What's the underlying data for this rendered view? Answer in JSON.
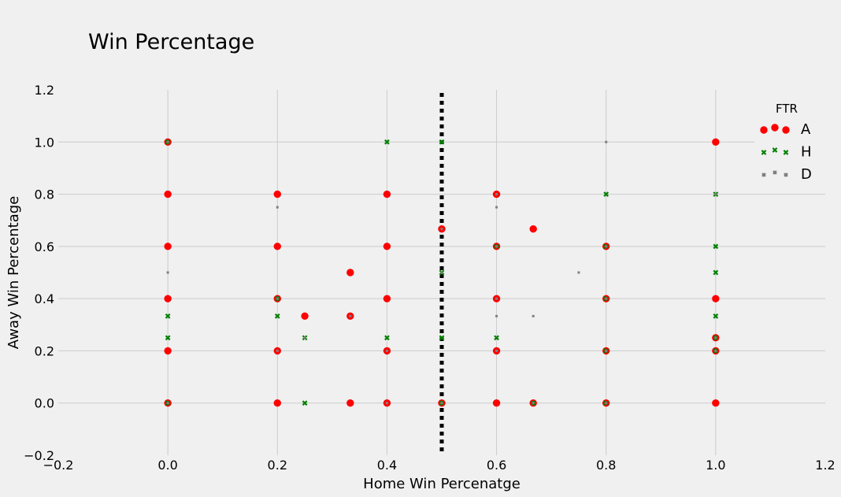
{
  "chart_data": {
    "type": "scatter",
    "title": "Win Percentage",
    "xlabel": "Home Win Percenatge",
    "ylabel": "Away Win Percentage",
    "xlim": [
      -0.2,
      1.2
    ],
    "ylim": [
      -0.2,
      1.2
    ],
    "x_ticks": [
      "−0.2",
      "0.0",
      "0.2",
      "0.4",
      "0.6",
      "0.8",
      "1.0",
      "1.2"
    ],
    "y_ticks": [
      "−0.2",
      "0.0",
      "0.2",
      "0.4",
      "0.6",
      "0.8",
      "1.0",
      "1.2"
    ],
    "grid": true,
    "vertical_line": {
      "x": 0.5,
      "style": "dotted",
      "color": "#000000"
    },
    "legend": {
      "title": "FTR",
      "placement": "top-right",
      "entries": [
        "A",
        "H",
        "D"
      ]
    },
    "colors": {
      "A": "#ff0000",
      "H": "#008000",
      "D": "#808080",
      "background": "#f0f0f0",
      "grid": "#cbcbcb"
    },
    "series": [
      {
        "name": "A",
        "marker": "circle",
        "points": [
          [
            0.0,
            1.0
          ],
          [
            0.0,
            0.8
          ],
          [
            0.0,
            0.6
          ],
          [
            0.0,
            0.4
          ],
          [
            0.0,
            0.2
          ],
          [
            0.0,
            0.0
          ],
          [
            0.2,
            0.8
          ],
          [
            0.2,
            0.6
          ],
          [
            0.2,
            0.4
          ],
          [
            0.2,
            0.2
          ],
          [
            0.2,
            0.0
          ],
          [
            0.25,
            0.333
          ],
          [
            0.333,
            0.5
          ],
          [
            0.333,
            0.333
          ],
          [
            0.333,
            0.0
          ],
          [
            0.4,
            0.8
          ],
          [
            0.4,
            0.6
          ],
          [
            0.4,
            0.4
          ],
          [
            0.4,
            0.2
          ],
          [
            0.4,
            0.0
          ],
          [
            0.5,
            0.667
          ],
          [
            0.5,
            0.0
          ],
          [
            0.6,
            0.8
          ],
          [
            0.6,
            0.6
          ],
          [
            0.6,
            0.4
          ],
          [
            0.6,
            0.2
          ],
          [
            0.6,
            0.0
          ],
          [
            0.667,
            0.667
          ],
          [
            0.667,
            0.0
          ],
          [
            0.8,
            0.6
          ],
          [
            0.8,
            0.4
          ],
          [
            0.8,
            0.2
          ],
          [
            0.8,
            0.0
          ],
          [
            1.0,
            1.0
          ],
          [
            1.0,
            0.4
          ],
          [
            1.0,
            0.25
          ],
          [
            1.0,
            0.2
          ],
          [
            1.0,
            0.0
          ]
        ]
      },
      {
        "name": "H",
        "marker": "x",
        "points": [
          [
            0.0,
            1.0
          ],
          [
            0.0,
            0.333
          ],
          [
            0.0,
            0.25
          ],
          [
            0.0,
            0.0
          ],
          [
            0.2,
            0.4
          ],
          [
            0.2,
            0.333
          ],
          [
            0.25,
            0.25
          ],
          [
            0.25,
            0.0
          ],
          [
            0.4,
            1.0
          ],
          [
            0.4,
            0.25
          ],
          [
            0.5,
            1.0
          ],
          [
            0.5,
            0.5
          ],
          [
            0.5,
            0.25
          ],
          [
            0.5,
            0.0
          ],
          [
            0.6,
            0.6
          ],
          [
            0.6,
            0.25
          ],
          [
            0.667,
            0.0
          ],
          [
            0.8,
            0.8
          ],
          [
            0.8,
            0.6
          ],
          [
            0.8,
            0.4
          ],
          [
            0.8,
            0.2
          ],
          [
            0.8,
            0.0
          ],
          [
            1.0,
            0.8
          ],
          [
            1.0,
            0.6
          ],
          [
            1.0,
            0.5
          ],
          [
            1.0,
            0.333
          ],
          [
            1.0,
            0.25
          ],
          [
            1.0,
            0.2
          ]
        ]
      },
      {
        "name": "D",
        "marker": "square",
        "points": [
          [
            0.0,
            0.5
          ],
          [
            0.0,
            1.0
          ],
          [
            0.0,
            0.0
          ],
          [
            0.2,
            0.75
          ],
          [
            0.2,
            0.4
          ],
          [
            0.2,
            0.2
          ],
          [
            0.25,
            0.25
          ],
          [
            0.333,
            0.333
          ],
          [
            0.4,
            0.2
          ],
          [
            0.4,
            0.0
          ],
          [
            0.5,
            0.667
          ],
          [
            0.5,
            0.5
          ],
          [
            0.5,
            0.0
          ],
          [
            0.6,
            0.8
          ],
          [
            0.6,
            0.75
          ],
          [
            0.6,
            0.6
          ],
          [
            0.6,
            0.4
          ],
          [
            0.6,
            0.333
          ],
          [
            0.6,
            0.2
          ],
          [
            0.667,
            0.333
          ],
          [
            0.667,
            0.0
          ],
          [
            0.75,
            0.5
          ],
          [
            0.8,
            1.0
          ],
          [
            0.8,
            0.6
          ],
          [
            0.8,
            0.4
          ],
          [
            0.8,
            0.2
          ],
          [
            0.8,
            0.0
          ],
          [
            1.0,
            0.8
          ],
          [
            1.0,
            0.25
          ],
          [
            1.0,
            0.2
          ]
        ]
      }
    ]
  }
}
